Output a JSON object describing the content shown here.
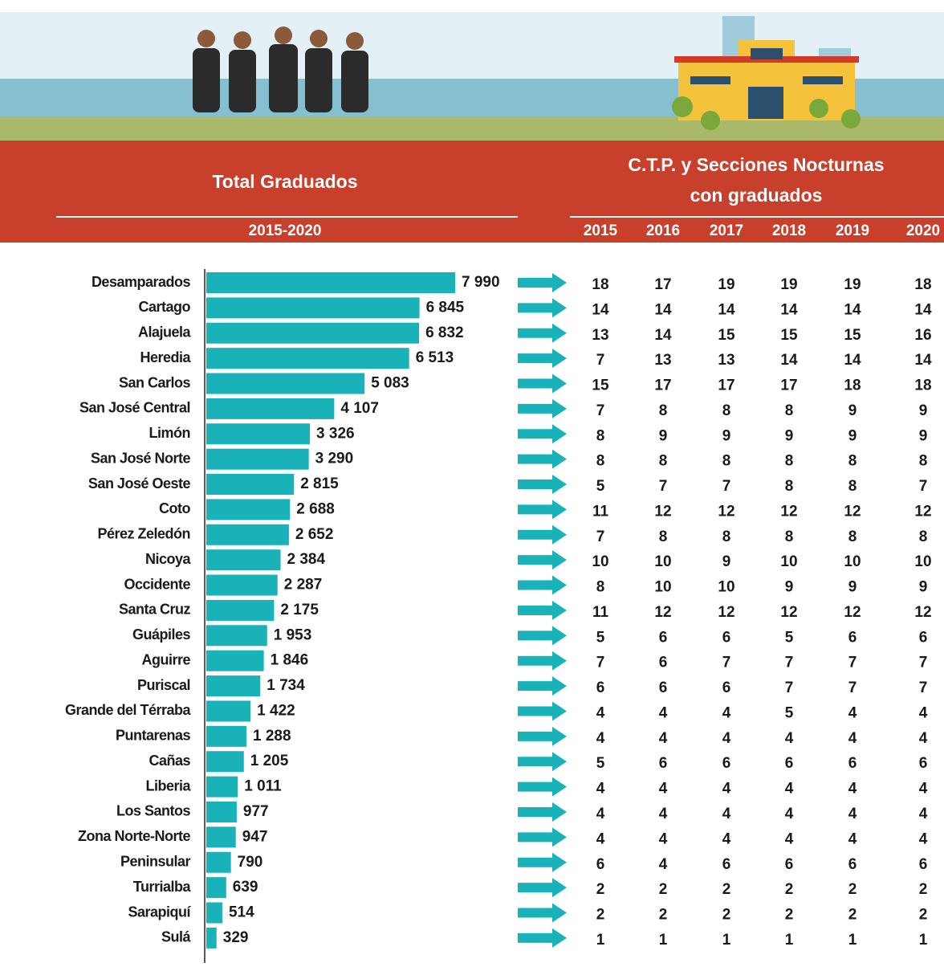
{
  "header": {
    "title_left": "Total Graduados",
    "period": "2015-2020",
    "title_right_1": "C.T.P. y Secciones Nocturnas",
    "title_right_2": "con graduados"
  },
  "chart_data": {
    "type": "bar",
    "orientation": "horizontal",
    "color": "#19b2b8",
    "categories": [
      "Desamparados",
      "Cartago",
      "Alajuela",
      "Heredia",
      "San Carlos",
      "San José Central",
      "Limón",
      "San José Norte",
      "San José Oeste",
      "Coto",
      "Pérez Zeledón",
      "Nicoya",
      "Occidente",
      "Santa Cruz",
      "Guápiles",
      "Aguirre",
      "Puriscal",
      "Grande del Térraba",
      "Puntarenas",
      "Cañas",
      "Liberia",
      "Los Santos",
      "Zona Norte-Norte",
      "Peninsular",
      "Turrialba",
      "Sarapiquí",
      "Sulá"
    ],
    "values": [
      7990,
      6845,
      6832,
      6513,
      5083,
      4107,
      3326,
      3290,
      2815,
      2688,
      2652,
      2384,
      2287,
      2175,
      1953,
      1846,
      1734,
      1422,
      1288,
      1205,
      1011,
      977,
      947,
      790,
      639,
      514,
      329
    ],
    "value_labels": [
      "7 990",
      "6 845",
      "6 832",
      "6 513",
      "5 083",
      "4 107",
      "3 326",
      "3 290",
      "2 815",
      "2 688",
      "2 652",
      "2 384",
      "2 287",
      "2 175",
      "1 953",
      "1 846",
      "1 734",
      "1 422",
      "1 288",
      "1 205",
      "1 011",
      "977",
      "947",
      "790",
      "639",
      "514",
      "329"
    ]
  },
  "table": {
    "columns": [
      2015,
      2016,
      2017,
      2018,
      2019,
      2020
    ],
    "rows": [
      [
        18,
        17,
        19,
        19,
        19,
        18
      ],
      [
        14,
        14,
        14,
        14,
        14,
        14
      ],
      [
        13,
        14,
        15,
        15,
        15,
        16
      ],
      [
        7,
        13,
        13,
        14,
        14,
        14
      ],
      [
        15,
        17,
        17,
        17,
        18,
        18
      ],
      [
        7,
        8,
        8,
        8,
        9,
        9
      ],
      [
        8,
        9,
        9,
        9,
        9,
        9
      ],
      [
        8,
        8,
        8,
        8,
        8,
        8
      ],
      [
        5,
        7,
        7,
        8,
        8,
        7
      ],
      [
        11,
        12,
        12,
        12,
        12,
        12
      ],
      [
        7,
        8,
        8,
        8,
        8,
        8
      ],
      [
        10,
        10,
        9,
        10,
        10,
        10
      ],
      [
        8,
        10,
        10,
        9,
        9,
        9
      ],
      [
        11,
        12,
        12,
        12,
        12,
        12
      ],
      [
        5,
        6,
        6,
        5,
        6,
        6
      ],
      [
        7,
        6,
        7,
        7,
        7,
        7
      ],
      [
        6,
        6,
        6,
        7,
        7,
        7
      ],
      [
        4,
        4,
        4,
        5,
        4,
        4
      ],
      [
        4,
        4,
        4,
        4,
        4,
        4
      ],
      [
        5,
        6,
        6,
        6,
        6,
        6
      ],
      [
        4,
        4,
        4,
        4,
        4,
        4
      ],
      [
        4,
        4,
        4,
        4,
        4,
        4
      ],
      [
        4,
        4,
        4,
        4,
        4,
        4
      ],
      [
        6,
        4,
        6,
        6,
        6,
        6
      ],
      [
        2,
        2,
        2,
        2,
        2,
        2
      ],
      [
        2,
        2,
        2,
        2,
        2,
        2
      ],
      [
        1,
        1,
        1,
        1,
        1,
        1
      ]
    ]
  }
}
